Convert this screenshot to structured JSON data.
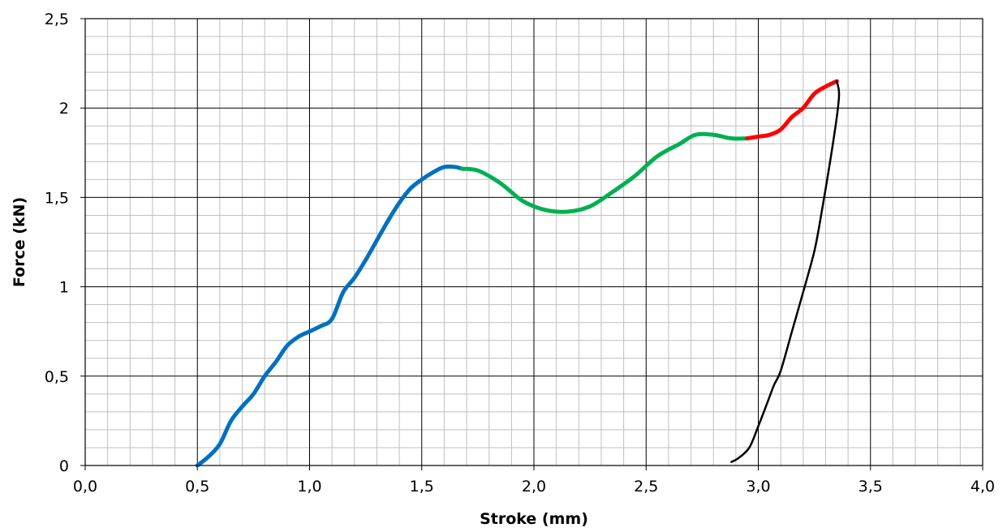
{
  "chart_data": {
    "type": "line",
    "xlabel": "Stroke (mm)",
    "ylabel": "Force (kN)",
    "xlim": [
      0,
      4
    ],
    "ylim": [
      0,
      2.5
    ],
    "x_ticks": [
      "0,0",
      "0,5",
      "1,0",
      "1,5",
      "2,0",
      "2,5",
      "3,0",
      "3,5",
      "4,0"
    ],
    "y_ticks": [
      "0",
      "0,5",
      "1",
      "1,5",
      "2",
      "2,5"
    ],
    "grid": {
      "major": true,
      "minor": true
    },
    "series": [
      {
        "color": "#0070c0",
        "x": [
          0.5,
          0.55,
          0.6,
          0.65,
          0.7,
          0.75,
          0.8,
          0.85,
          0.9,
          0.95,
          1.0,
          1.05,
          1.1,
          1.15,
          1.2,
          1.25,
          1.3,
          1.35,
          1.4,
          1.45,
          1.5,
          1.55,
          1.6,
          1.65,
          1.68
        ],
        "y": [
          0.0,
          0.05,
          0.12,
          0.25,
          0.33,
          0.4,
          0.5,
          0.58,
          0.67,
          0.72,
          0.75,
          0.78,
          0.82,
          0.97,
          1.05,
          1.15,
          1.26,
          1.37,
          1.47,
          1.55,
          1.6,
          1.64,
          1.67,
          1.67,
          1.66
        ]
      },
      {
        "color": "#00b050",
        "x": [
          1.68,
          1.75,
          1.85,
          1.95,
          2.05,
          2.15,
          2.25,
          2.35,
          2.45,
          2.55,
          2.65,
          2.72,
          2.8,
          2.88,
          2.95
        ],
        "y": [
          1.66,
          1.65,
          1.58,
          1.48,
          1.43,
          1.42,
          1.45,
          1.53,
          1.62,
          1.73,
          1.8,
          1.85,
          1.85,
          1.83,
          1.83
        ]
      },
      {
        "color": "#ff0000",
        "x": [
          2.95,
          3.0,
          3.05,
          3.1,
          3.15,
          3.2,
          3.25,
          3.3,
          3.35
        ],
        "y": [
          1.83,
          1.84,
          1.85,
          1.88,
          1.95,
          2.0,
          2.08,
          2.12,
          2.15
        ]
      },
      {
        "color": "#000000",
        "x": [
          3.35,
          3.36,
          3.35,
          3.32,
          3.28,
          3.25,
          3.2,
          3.15,
          3.1,
          3.07,
          3.04,
          3.0,
          2.96,
          2.91,
          2.88
        ],
        "y": [
          2.15,
          2.08,
          1.95,
          1.7,
          1.4,
          1.2,
          0.97,
          0.75,
          0.53,
          0.45,
          0.35,
          0.22,
          0.1,
          0.04,
          0.02
        ]
      }
    ]
  }
}
